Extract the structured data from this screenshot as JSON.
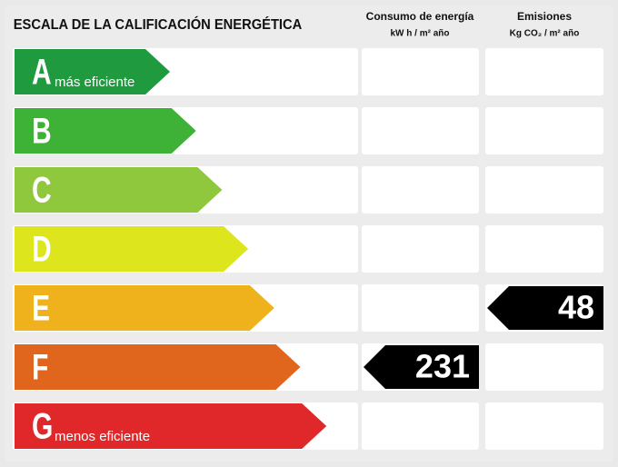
{
  "header": {
    "title": "ESCALA DE LA CALIFICACIÓN ENERGÉTICA",
    "columns": [
      {
        "title": "Consumo de energía",
        "unit": "kW h / m² año"
      },
      {
        "title": "Emisiones",
        "unit": "Kg CO₂ / m² año"
      }
    ]
  },
  "rows": [
    {
      "letter": "A",
      "note": "más eficiente",
      "color": "#1f9a3e"
    },
    {
      "letter": "B",
      "color": "#3db236"
    },
    {
      "letter": "C",
      "color": "#8fc83c"
    },
    {
      "letter": "D",
      "color": "#dde61c"
    },
    {
      "letter": "E",
      "color": "#f0b21c",
      "emissions": 48
    },
    {
      "letter": "F",
      "color": "#e0661e",
      "consumption": 231
    },
    {
      "letter": "G",
      "note": "menos eficiente",
      "color": "#e0282a"
    }
  ]
}
